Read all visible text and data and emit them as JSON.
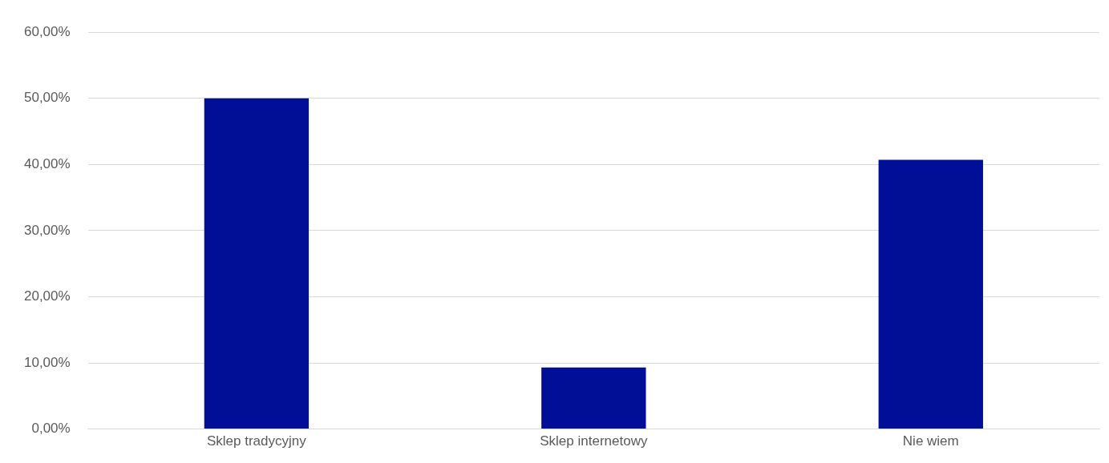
{
  "chart_data": {
    "type": "bar",
    "categories": [
      "Sklep tradycyjny",
      "Sklep internetowy",
      "Nie wiem"
    ],
    "values": [
      50,
      9.3,
      40.7
    ],
    "color": "#000f96",
    "ylim": [
      0,
      60
    ],
    "yticks": [
      {
        "value": 0,
        "label": "0,00%"
      },
      {
        "value": 10,
        "label": "10,00%"
      },
      {
        "value": 20,
        "label": "20,00%"
      },
      {
        "value": 30,
        "label": "30,00%"
      },
      {
        "value": 40,
        "label": "40,00%"
      },
      {
        "value": 50,
        "label": "50,00%"
      },
      {
        "value": 60,
        "label": "60,00%"
      }
    ],
    "grid": "y",
    "legend": false
  }
}
